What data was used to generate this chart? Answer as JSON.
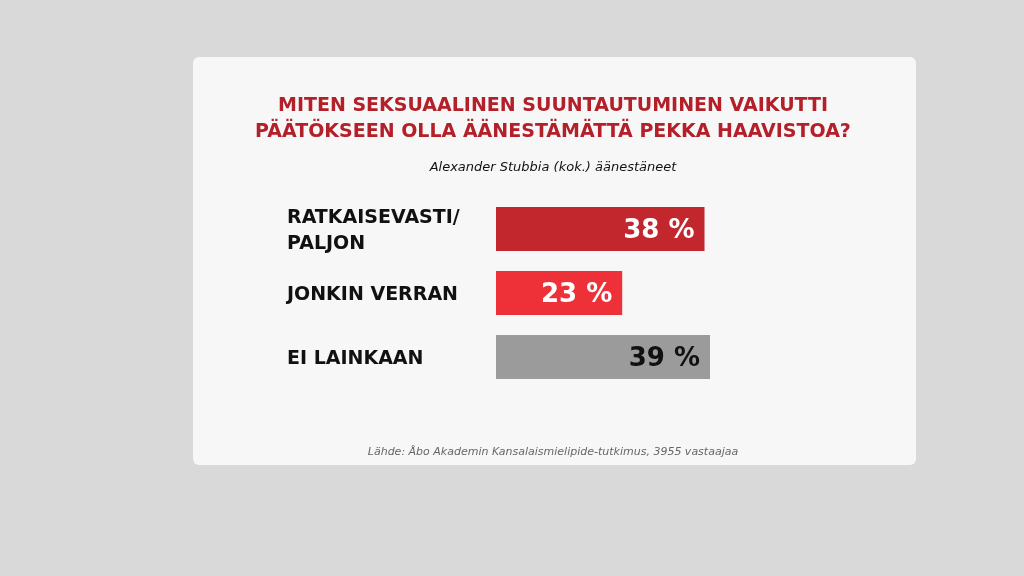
{
  "chart_data": {
    "type": "bar",
    "orientation": "horizontal",
    "title": "MITEN SEKSUAALINEN SUUNTAUTUMINEN VAIKUTTI PÄÄTÖKSEEN OLLA ÄÄNESTÄMÄTTÄ PEKKA HAAVISTOA?",
    "subtitle": "Alexander Stubbia (kok.) äänestäneet",
    "categories": [
      "RATKAISEVASTI/PALJON",
      "JONKIN VERRAN",
      "EI LAINKAAN"
    ],
    "values": [
      38,
      23,
      39
    ],
    "colors": [
      "#c1272d",
      "#ee3138",
      "#9b9b9b"
    ],
    "value_labels": [
      "38 %",
      "23 %",
      "39 %"
    ],
    "annotations": [
      "Lähde: Åbo Akademin Kansalaismielipide-tutkimus, 3955 vastaajaa"
    ]
  }
}
